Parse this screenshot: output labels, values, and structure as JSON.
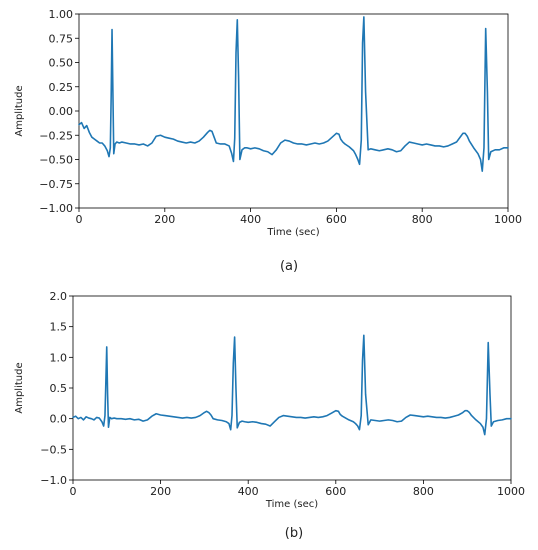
{
  "chart_data": [
    {
      "type": "line",
      "caption": "(a)",
      "xlabel": "Time (sec)",
      "ylabel": "Amplitude",
      "xlim": [
        0,
        1000
      ],
      "ylim": [
        -1.0,
        1.0
      ],
      "xticks": [
        "0",
        "200",
        "400",
        "600",
        "800",
        "1000"
      ],
      "yticks": [
        "−1.00",
        "−0.75",
        "−0.50",
        "−0.25",
        "0.00",
        "0.25",
        "0.50",
        "0.75",
        "1.00"
      ],
      "color": "#1f77b4",
      "grid": false,
      "series": [
        {
          "x": [
            0,
            6,
            12,
            18,
            24,
            30,
            36,
            42,
            48,
            54,
            60,
            66,
            70,
            73,
            75,
            77,
            79,
            81,
            84,
            88,
            94,
            100,
            110,
            120,
            130,
            140,
            150,
            160,
            170,
            180,
            190,
            200,
            210,
            220,
            230,
            240,
            250,
            260,
            270,
            280,
            290,
            300,
            305,
            310,
            315,
            320,
            330,
            340,
            350,
            356,
            360,
            363,
            366,
            369,
            372,
            375,
            380,
            386,
            392,
            400,
            410,
            420,
            430,
            440,
            450,
            460,
            470,
            480,
            490,
            500,
            510,
            520,
            530,
            540,
            550,
            560,
            570,
            580,
            590,
            600,
            606,
            610,
            615,
            620,
            630,
            640,
            645,
            650,
            654,
            658,
            661,
            664,
            668,
            674,
            680,
            690,
            700,
            710,
            720,
            730,
            740,
            750,
            760,
            770,
            780,
            790,
            800,
            810,
            820,
            830,
            840,
            850,
            860,
            870,
            880,
            890,
            895,
            900,
            905,
            910,
            920,
            930,
            936,
            940,
            944,
            948,
            952,
            955,
            960,
            970,
            980,
            990,
            1000
          ],
          "y": [
            -0.14,
            -0.12,
            -0.18,
            -0.15,
            -0.22,
            -0.27,
            -0.29,
            -0.31,
            -0.33,
            -0.33,
            -0.36,
            -0.41,
            -0.47,
            -0.38,
            0.15,
            0.84,
            0.2,
            -0.44,
            -0.34,
            -0.32,
            -0.33,
            -0.32,
            -0.33,
            -0.34,
            -0.34,
            -0.35,
            -0.34,
            -0.36,
            -0.33,
            -0.26,
            -0.25,
            -0.27,
            -0.28,
            -0.29,
            -0.31,
            -0.32,
            -0.33,
            -0.32,
            -0.33,
            -0.31,
            -0.27,
            -0.22,
            -0.2,
            -0.21,
            -0.27,
            -0.33,
            -0.34,
            -0.34,
            -0.36,
            -0.44,
            -0.52,
            -0.28,
            0.6,
            0.94,
            0.35,
            -0.5,
            -0.4,
            -0.38,
            -0.38,
            -0.39,
            -0.38,
            -0.39,
            -0.41,
            -0.42,
            -0.45,
            -0.4,
            -0.33,
            -0.3,
            -0.31,
            -0.33,
            -0.34,
            -0.34,
            -0.35,
            -0.34,
            -0.33,
            -0.34,
            -0.33,
            -0.31,
            -0.27,
            -0.23,
            -0.24,
            -0.29,
            -0.32,
            -0.34,
            -0.37,
            -0.41,
            -0.45,
            -0.5,
            -0.55,
            -0.3,
            0.7,
            0.97,
            0.2,
            -0.4,
            -0.39,
            -0.4,
            -0.41,
            -0.4,
            -0.39,
            -0.4,
            -0.42,
            -0.41,
            -0.36,
            -0.32,
            -0.33,
            -0.34,
            -0.35,
            -0.34,
            -0.35,
            -0.36,
            -0.36,
            -0.37,
            -0.36,
            -0.34,
            -0.32,
            -0.26,
            -0.23,
            -0.23,
            -0.26,
            -0.31,
            -0.38,
            -0.44,
            -0.5,
            -0.62,
            -0.38,
            0.85,
            0.2,
            -0.5,
            -0.42,
            -0.4,
            -0.4,
            -0.38,
            -0.38
          ]
        }
      ]
    },
    {
      "type": "line",
      "caption": "(b)",
      "xlabel": "Time (sec)",
      "ylabel": "Amplitude",
      "xlim": [
        0,
        1000
      ],
      "ylim": [
        -1.0,
        2.0
      ],
      "xticks": [
        "0",
        "200",
        "400",
        "600",
        "800",
        "1000"
      ],
      "yticks": [
        "−1.0",
        "−0.5",
        "0.0",
        "0.5",
        "1.0",
        "1.5",
        "2.0"
      ],
      "color": "#1f77b4",
      "grid": false,
      "series": [
        {
          "x": [
            0,
            6,
            12,
            18,
            24,
            30,
            36,
            42,
            48,
            54,
            60,
            66,
            70,
            73,
            75,
            77,
            79,
            81,
            84,
            88,
            94,
            100,
            110,
            120,
            130,
            140,
            150,
            160,
            170,
            180,
            190,
            200,
            210,
            220,
            230,
            240,
            250,
            260,
            270,
            280,
            290,
            300,
            305,
            310,
            315,
            320,
            330,
            340,
            350,
            356,
            360,
            363,
            366,
            369,
            372,
            375,
            380,
            386,
            392,
            400,
            410,
            420,
            430,
            440,
            450,
            460,
            470,
            480,
            490,
            500,
            510,
            520,
            530,
            540,
            550,
            560,
            570,
            580,
            590,
            600,
            606,
            610,
            615,
            620,
            630,
            640,
            645,
            650,
            654,
            658,
            661,
            664,
            668,
            674,
            680,
            690,
            700,
            710,
            720,
            730,
            740,
            750,
            760,
            770,
            780,
            790,
            800,
            810,
            820,
            830,
            840,
            850,
            860,
            870,
            880,
            890,
            895,
            900,
            905,
            910,
            920,
            930,
            936,
            940,
            944,
            948,
            952,
            955,
            960,
            970,
            980,
            990,
            1000
          ],
          "y": [
            0.02,
            0.04,
            0.0,
            0.02,
            -0.02,
            0.03,
            0.01,
            0.0,
            -0.02,
            0.02,
            0.01,
            -0.05,
            -0.12,
            0.05,
            0.6,
            1.17,
            0.4,
            -0.14,
            0.02,
            0.0,
            0.01,
            0.0,
            0.0,
            -0.01,
            0.0,
            -0.02,
            -0.01,
            -0.04,
            -0.02,
            0.04,
            0.08,
            0.06,
            0.05,
            0.04,
            0.03,
            0.02,
            0.01,
            0.02,
            0.01,
            0.02,
            0.05,
            0.1,
            0.12,
            0.1,
            0.06,
            0.0,
            -0.02,
            -0.03,
            -0.05,
            -0.08,
            -0.18,
            0.05,
            0.9,
            1.33,
            0.5,
            -0.15,
            -0.06,
            -0.04,
            -0.05,
            -0.06,
            -0.05,
            -0.06,
            -0.08,
            -0.09,
            -0.12,
            -0.05,
            0.02,
            0.05,
            0.04,
            0.03,
            0.02,
            0.02,
            0.01,
            0.02,
            0.03,
            0.02,
            0.03,
            0.05,
            0.09,
            0.13,
            0.12,
            0.07,
            0.04,
            0.02,
            -0.02,
            -0.05,
            -0.08,
            -0.12,
            -0.18,
            0.05,
            0.95,
            1.36,
            0.4,
            -0.1,
            -0.02,
            -0.03,
            -0.04,
            -0.03,
            -0.02,
            -0.03,
            -0.05,
            -0.04,
            0.02,
            0.06,
            0.05,
            0.04,
            0.03,
            0.04,
            0.03,
            0.02,
            0.02,
            0.01,
            0.02,
            0.04,
            0.06,
            0.1,
            0.13,
            0.13,
            0.1,
            0.05,
            -0.02,
            -0.08,
            -0.14,
            -0.26,
            0.0,
            1.24,
            0.4,
            -0.12,
            -0.05,
            -0.03,
            -0.02,
            0.0,
            0.0
          ]
        }
      ]
    }
  ]
}
